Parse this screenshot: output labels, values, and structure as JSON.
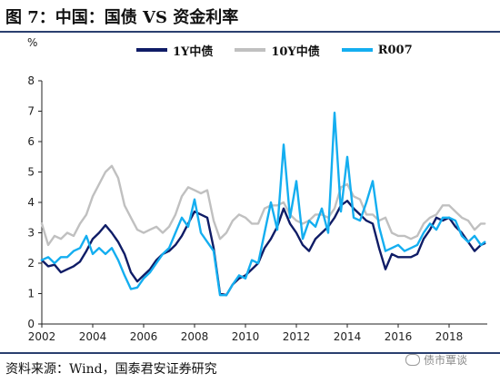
{
  "header": {
    "title": "图 7：中国：国债 VS 资金利率"
  },
  "footer": {
    "source": "资料来源：Wind，国泰君安证券研究",
    "watermark": "债市覃谈"
  },
  "colors": {
    "bar": "#2a3f6f"
  },
  "chart_data": {
    "type": "line",
    "ylabel": "%",
    "ylim": [
      0,
      8
    ],
    "xlim": [
      2002,
      2019.5
    ],
    "yticks": [
      0,
      1,
      2,
      3,
      4,
      5,
      6,
      7,
      8
    ],
    "xticks": [
      "2002",
      "2004",
      "2006",
      "2008",
      "2010",
      "2012",
      "2014",
      "2016",
      "2018"
    ],
    "legend_position": "top",
    "grid": false,
    "series": [
      {
        "name": "1Y中债",
        "color": "#0f1c66",
        "points": [
          [
            2002.0,
            2.1
          ],
          [
            2002.25,
            1.9
          ],
          [
            2002.5,
            1.95
          ],
          [
            2002.75,
            1.7
          ],
          [
            2003.0,
            1.8
          ],
          [
            2003.25,
            1.9
          ],
          [
            2003.5,
            2.05
          ],
          [
            2003.75,
            2.4
          ],
          [
            2004.0,
            2.8
          ],
          [
            2004.25,
            3.0
          ],
          [
            2004.5,
            3.25
          ],
          [
            2004.75,
            3.0
          ],
          [
            2005.0,
            2.7
          ],
          [
            2005.25,
            2.3
          ],
          [
            2005.5,
            1.7
          ],
          [
            2005.75,
            1.4
          ],
          [
            2006.0,
            1.6
          ],
          [
            2006.25,
            1.8
          ],
          [
            2006.5,
            2.1
          ],
          [
            2006.75,
            2.3
          ],
          [
            2007.0,
            2.4
          ],
          [
            2007.25,
            2.6
          ],
          [
            2007.5,
            2.9
          ],
          [
            2007.75,
            3.3
          ],
          [
            2008.0,
            3.7
          ],
          [
            2008.25,
            3.6
          ],
          [
            2008.5,
            3.5
          ],
          [
            2008.75,
            2.5
          ],
          [
            2009.0,
            1.0
          ],
          [
            2009.25,
            0.95
          ],
          [
            2009.5,
            1.3
          ],
          [
            2009.75,
            1.5
          ],
          [
            2010.0,
            1.6
          ],
          [
            2010.25,
            1.8
          ],
          [
            2010.5,
            2.0
          ],
          [
            2010.75,
            2.5
          ],
          [
            2011.0,
            2.8
          ],
          [
            2011.25,
            3.2
          ],
          [
            2011.5,
            3.8
          ],
          [
            2011.75,
            3.3
          ],
          [
            2012.0,
            3.0
          ],
          [
            2012.25,
            2.6
          ],
          [
            2012.5,
            2.4
          ],
          [
            2012.75,
            2.8
          ],
          [
            2013.0,
            3.0
          ],
          [
            2013.25,
            3.2
          ],
          [
            2013.5,
            3.5
          ],
          [
            2013.75,
            3.9
          ],
          [
            2014.0,
            4.05
          ],
          [
            2014.25,
            3.8
          ],
          [
            2014.5,
            3.6
          ],
          [
            2014.75,
            3.4
          ],
          [
            2015.0,
            3.3
          ],
          [
            2015.25,
            2.5
          ],
          [
            2015.5,
            1.8
          ],
          [
            2015.75,
            2.3
          ],
          [
            2016.0,
            2.2
          ],
          [
            2016.25,
            2.2
          ],
          [
            2016.5,
            2.2
          ],
          [
            2016.75,
            2.3
          ],
          [
            2017.0,
            2.8
          ],
          [
            2017.25,
            3.1
          ],
          [
            2017.5,
            3.5
          ],
          [
            2017.75,
            3.4
          ],
          [
            2018.0,
            3.5
          ],
          [
            2018.25,
            3.2
          ],
          [
            2018.5,
            3.0
          ],
          [
            2018.75,
            2.7
          ],
          [
            2019.0,
            2.4
          ],
          [
            2019.25,
            2.6
          ],
          [
            2019.4,
            2.65
          ]
        ]
      },
      {
        "name": "10Y中债",
        "color": "#c0c0c0",
        "points": [
          [
            2002.0,
            3.3
          ],
          [
            2002.25,
            2.6
          ],
          [
            2002.5,
            2.9
          ],
          [
            2002.75,
            2.8
          ],
          [
            2003.0,
            3.0
          ],
          [
            2003.25,
            2.9
          ],
          [
            2003.5,
            3.3
          ],
          [
            2003.75,
            3.6
          ],
          [
            2004.0,
            4.2
          ],
          [
            2004.25,
            4.6
          ],
          [
            2004.5,
            5.0
          ],
          [
            2004.75,
            5.2
          ],
          [
            2005.0,
            4.8
          ],
          [
            2005.25,
            3.9
          ],
          [
            2005.5,
            3.5
          ],
          [
            2005.75,
            3.1
          ],
          [
            2006.0,
            3.0
          ],
          [
            2006.25,
            3.1
          ],
          [
            2006.5,
            3.2
          ],
          [
            2006.75,
            3.0
          ],
          [
            2007.0,
            3.2
          ],
          [
            2007.25,
            3.6
          ],
          [
            2007.5,
            4.2
          ],
          [
            2007.75,
            4.5
          ],
          [
            2008.0,
            4.4
          ],
          [
            2008.25,
            4.3
          ],
          [
            2008.5,
            4.4
          ],
          [
            2008.75,
            3.4
          ],
          [
            2009.0,
            2.8
          ],
          [
            2009.25,
            3.0
          ],
          [
            2009.5,
            3.4
          ],
          [
            2009.75,
            3.6
          ],
          [
            2010.0,
            3.5
          ],
          [
            2010.25,
            3.3
          ],
          [
            2010.5,
            3.3
          ],
          [
            2010.75,
            3.8
          ],
          [
            2011.0,
            3.9
          ],
          [
            2011.25,
            3.9
          ],
          [
            2011.5,
            4.0
          ],
          [
            2011.75,
            3.6
          ],
          [
            2012.0,
            3.4
          ],
          [
            2012.25,
            3.3
          ],
          [
            2012.5,
            3.4
          ],
          [
            2012.75,
            3.6
          ],
          [
            2013.0,
            3.6
          ],
          [
            2013.25,
            3.5
          ],
          [
            2013.5,
            3.8
          ],
          [
            2013.75,
            4.5
          ],
          [
            2014.0,
            4.6
          ],
          [
            2014.25,
            4.2
          ],
          [
            2014.5,
            4.1
          ],
          [
            2014.75,
            3.6
          ],
          [
            2015.0,
            3.6
          ],
          [
            2015.25,
            3.4
          ],
          [
            2015.5,
            3.5
          ],
          [
            2015.75,
            3.0
          ],
          [
            2016.0,
            2.9
          ],
          [
            2016.25,
            2.9
          ],
          [
            2016.5,
            2.8
          ],
          [
            2016.75,
            2.9
          ],
          [
            2017.0,
            3.3
          ],
          [
            2017.25,
            3.5
          ],
          [
            2017.5,
            3.6
          ],
          [
            2017.75,
            3.9
          ],
          [
            2018.0,
            3.9
          ],
          [
            2018.25,
            3.7
          ],
          [
            2018.5,
            3.5
          ],
          [
            2018.75,
            3.4
          ],
          [
            2019.0,
            3.1
          ],
          [
            2019.25,
            3.3
          ],
          [
            2019.4,
            3.3
          ]
        ]
      },
      {
        "name": "R007",
        "color": "#14aef0",
        "points": [
          [
            2002.0,
            2.1
          ],
          [
            2002.25,
            2.2
          ],
          [
            2002.5,
            2.0
          ],
          [
            2002.75,
            2.2
          ],
          [
            2003.0,
            2.2
          ],
          [
            2003.25,
            2.4
          ],
          [
            2003.5,
            2.5
          ],
          [
            2003.75,
            2.9
          ],
          [
            2004.0,
            2.3
          ],
          [
            2004.25,
            2.5
          ],
          [
            2004.5,
            2.3
          ],
          [
            2004.75,
            2.5
          ],
          [
            2005.0,
            2.1
          ],
          [
            2005.25,
            1.6
          ],
          [
            2005.5,
            1.15
          ],
          [
            2005.75,
            1.2
          ],
          [
            2006.0,
            1.5
          ],
          [
            2006.25,
            1.7
          ],
          [
            2006.5,
            2.0
          ],
          [
            2006.75,
            2.3
          ],
          [
            2007.0,
            2.5
          ],
          [
            2007.25,
            3.0
          ],
          [
            2007.5,
            3.5
          ],
          [
            2007.75,
            3.2
          ],
          [
            2008.0,
            4.1
          ],
          [
            2008.25,
            3.0
          ],
          [
            2008.5,
            2.7
          ],
          [
            2008.75,
            2.4
          ],
          [
            2009.0,
            0.95
          ],
          [
            2009.25,
            0.95
          ],
          [
            2009.5,
            1.3
          ],
          [
            2009.75,
            1.6
          ],
          [
            2010.0,
            1.5
          ],
          [
            2010.25,
            2.1
          ],
          [
            2010.5,
            2.0
          ],
          [
            2010.75,
            3.0
          ],
          [
            2011.0,
            4.0
          ],
          [
            2011.25,
            3.1
          ],
          [
            2011.5,
            5.9
          ],
          [
            2011.75,
            3.5
          ],
          [
            2012.0,
            4.7
          ],
          [
            2012.25,
            2.8
          ],
          [
            2012.5,
            3.4
          ],
          [
            2012.75,
            3.2
          ],
          [
            2013.0,
            3.8
          ],
          [
            2013.25,
            3.0
          ],
          [
            2013.5,
            6.95
          ],
          [
            2013.75,
            3.7
          ],
          [
            2014.0,
            5.5
          ],
          [
            2014.25,
            3.5
          ],
          [
            2014.5,
            3.4
          ],
          [
            2014.75,
            4.0
          ],
          [
            2015.0,
            4.7
          ],
          [
            2015.25,
            3.2
          ],
          [
            2015.5,
            2.4
          ],
          [
            2015.75,
            2.5
          ],
          [
            2016.0,
            2.6
          ],
          [
            2016.25,
            2.4
          ],
          [
            2016.5,
            2.5
          ],
          [
            2016.75,
            2.6
          ],
          [
            2017.0,
            3.0
          ],
          [
            2017.25,
            3.3
          ],
          [
            2017.5,
            3.1
          ],
          [
            2017.75,
            3.5
          ],
          [
            2018.0,
            3.5
          ],
          [
            2018.25,
            3.4
          ],
          [
            2018.5,
            2.9
          ],
          [
            2018.75,
            2.7
          ],
          [
            2019.0,
            2.9
          ],
          [
            2019.25,
            2.6
          ],
          [
            2019.4,
            2.7
          ]
        ]
      }
    ]
  }
}
